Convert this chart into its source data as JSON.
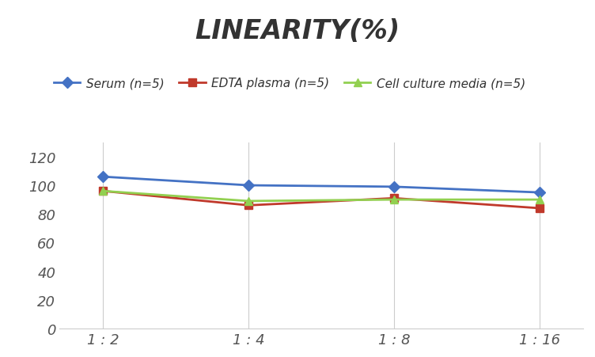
{
  "title": "LINEARITY(%)",
  "x_labels": [
    "1 : 2",
    "1 : 4",
    "1 : 8",
    "1 : 16"
  ],
  "series": [
    {
      "label": "Serum (n=5)",
      "values": [
        106,
        100,
        99,
        95
      ],
      "color": "#4472C4",
      "marker": "D",
      "marker_facecolor": "#4472C4",
      "linestyle": "-",
      "linewidth": 2.0
    },
    {
      "label": "EDTA plasma (n=5)",
      "values": [
        96,
        86,
        91,
        84
      ],
      "color": "#C0392B",
      "marker": "s",
      "marker_facecolor": "#C0392B",
      "linestyle": "-",
      "linewidth": 2.0
    },
    {
      "label": "Cell culture media (n=5)",
      "values": [
        96,
        89,
        90,
        90
      ],
      "color": "#92D050",
      "marker": "^",
      "marker_facecolor": "#92D050",
      "linestyle": "-",
      "linewidth": 2.0
    }
  ],
  "ylim": [
    0,
    130
  ],
  "yticks": [
    0,
    20,
    40,
    60,
    80,
    100,
    120
  ],
  "background_color": "#FFFFFF",
  "grid_color": "#CCCCCC",
  "title_fontsize": 24,
  "legend_fontsize": 11,
  "tick_fontsize": 13
}
